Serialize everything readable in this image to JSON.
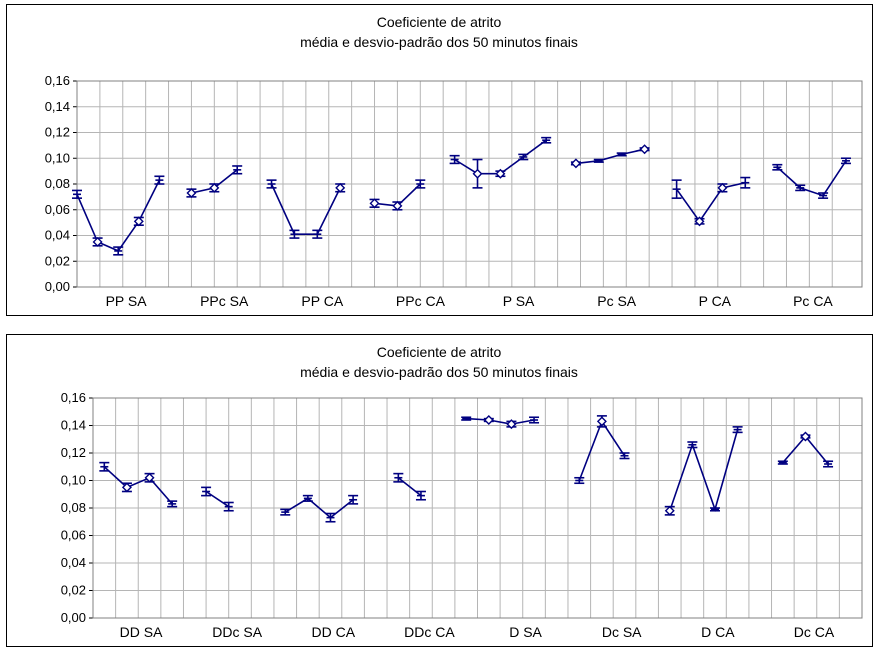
{
  "chart_data": [
    {
      "type": "line",
      "title": "Coeficiente de atrito",
      "subtitle": "média e desvio-padrão dos 50 minutos finais",
      "ylim": [
        0,
        0.16
      ],
      "yticks": [
        "0,00",
        "0,02",
        "0,04",
        "0,06",
        "0,08",
        "0,10",
        "0,12",
        "0,14",
        "0,16"
      ],
      "categories": [
        "PP SA",
        "PPc SA",
        "PP CA",
        "PPc CA",
        "P SA",
        "Pc SA",
        "P CA",
        "Pc CA"
      ],
      "grid": true,
      "color": "#000080",
      "groups": [
        {
          "points": [
            {
              "x": 0,
              "y": 0.072,
              "e": 0.003,
              "m": "plus"
            },
            {
              "x": 0.9,
              "y": 0.035,
              "e": 0.003,
              "m": "diamond"
            },
            {
              "x": 1.8,
              "y": 0.028,
              "e": 0.003,
              "m": "plus"
            },
            {
              "x": 2.7,
              "y": 0.051,
              "e": 0.003,
              "m": "diamond"
            },
            {
              "x": 3.6,
              "y": 0.083,
              "e": 0.003,
              "m": "plus"
            }
          ]
        },
        {
          "points": [
            {
              "x": 5,
              "y": 0.073,
              "e": 0.003,
              "m": "diamond"
            },
            {
              "x": 6,
              "y": 0.077,
              "e": 0.003,
              "m": "diamond"
            },
            {
              "x": 7,
              "y": 0.091,
              "e": 0.003,
              "m": "plus"
            }
          ]
        },
        {
          "points": [
            {
              "x": 8.5,
              "y": 0.08,
              "e": 0.003,
              "m": "plus"
            },
            {
              "x": 9.5,
              "y": 0.041,
              "e": 0.003,
              "m": "plus"
            },
            {
              "x": 10.5,
              "y": 0.041,
              "e": 0.003,
              "m": "plus"
            },
            {
              "x": 11.5,
              "y": 0.077,
              "e": 0.003,
              "m": "diamond"
            }
          ]
        },
        {
          "points": [
            {
              "x": 13,
              "y": 0.065,
              "e": 0.003,
              "m": "diamond"
            },
            {
              "x": 14,
              "y": 0.063,
              "e": 0.003,
              "m": "diamond"
            },
            {
              "x": 15,
              "y": 0.08,
              "e": 0.003,
              "m": "plus"
            }
          ]
        },
        {
          "points": [
            {
              "x": 16.5,
              "y": 0.099,
              "e": 0.003,
              "m": "plus"
            },
            {
              "x": 17.5,
              "y": 0.088,
              "e": 0.011,
              "m": "diamond"
            },
            {
              "x": 18.5,
              "y": 0.088,
              "e": 0.002,
              "m": "diamond"
            },
            {
              "x": 19.5,
              "y": 0.101,
              "e": 0.002,
              "m": "plus"
            },
            {
              "x": 20.5,
              "y": 0.114,
              "e": 0.002,
              "m": "plus"
            }
          ]
        },
        {
          "points": [
            {
              "x": 21.8,
              "y": 0.096,
              "e": 0.001,
              "m": "diamond"
            },
            {
              "x": 22.8,
              "y": 0.098,
              "e": 0.001,
              "m": "plus"
            },
            {
              "x": 23.8,
              "y": 0.103,
              "e": 0.001,
              "m": "plus"
            },
            {
              "x": 24.8,
              "y": 0.107,
              "e": 0.001,
              "m": "diamond"
            }
          ]
        },
        {
          "points": [
            {
              "x": 26.2,
              "y": 0.076,
              "e": 0.007,
              "m": "plus"
            },
            {
              "x": 27.2,
              "y": 0.051,
              "e": 0.002,
              "m": "diamond"
            },
            {
              "x": 28.2,
              "y": 0.077,
              "e": 0.003,
              "m": "diamond"
            },
            {
              "x": 29.2,
              "y": 0.081,
              "e": 0.004,
              "m": "plus"
            }
          ]
        },
        {
          "points": [
            {
              "x": 30.6,
              "y": 0.093,
              "e": 0.002,
              "m": "plus"
            },
            {
              "x": 31.6,
              "y": 0.077,
              "e": 0.002,
              "m": "plus"
            },
            {
              "x": 32.6,
              "y": 0.071,
              "e": 0.002,
              "m": "plus"
            },
            {
              "x": 33.6,
              "y": 0.098,
              "e": 0.002,
              "m": "plus"
            }
          ]
        }
      ]
    },
    {
      "type": "line",
      "title": "Coeficiente de atrito",
      "subtitle": "média e desvio-padrão dos 50 minutos finais",
      "ylim": [
        0,
        0.16
      ],
      "yticks": [
        "0,00",
        "0,02",
        "0,04",
        "0,06",
        "0,08",
        "0,10",
        "0,12",
        "0,14",
        "0,16"
      ],
      "categories": [
        "DD SA",
        "DDc SA",
        "DD CA",
        "DDc CA",
        "D SA",
        "Dc SA",
        "D CA",
        "Dc CA"
      ],
      "grid": true,
      "color": "#000080",
      "groups": [
        {
          "points": [
            {
              "x": 0.5,
              "y": 0.11,
              "e": 0.003,
              "m": "plus"
            },
            {
              "x": 1.5,
              "y": 0.095,
              "e": 0.003,
              "m": "diamond"
            },
            {
              "x": 2.5,
              "y": 0.102,
              "e": 0.003,
              "m": "diamond"
            },
            {
              "x": 3.5,
              "y": 0.083,
              "e": 0.002,
              "m": "plus"
            }
          ]
        },
        {
          "points": [
            {
              "x": 5,
              "y": 0.092,
              "e": 0.003,
              "m": "plus"
            },
            {
              "x": 6,
              "y": 0.081,
              "e": 0.003,
              "m": "plus"
            }
          ]
        },
        {
          "points": [
            {
              "x": 8.5,
              "y": 0.077,
              "e": 0.002,
              "m": "plus"
            },
            {
              "x": 9.5,
              "y": 0.087,
              "e": 0.002,
              "m": "plus"
            },
            {
              "x": 10.5,
              "y": 0.073,
              "e": 0.003,
              "m": "plus"
            },
            {
              "x": 11.5,
              "y": 0.086,
              "e": 0.003,
              "m": "plus"
            }
          ]
        },
        {
          "points": [
            {
              "x": 13.5,
              "y": 0.102,
              "e": 0.003,
              "m": "plus"
            },
            {
              "x": 14.5,
              "y": 0.089,
              "e": 0.003,
              "m": "plus"
            }
          ]
        },
        {
          "points": [
            {
              "x": 16.5,
              "y": 0.145,
              "e": 0.001,
              "m": "plus"
            },
            {
              "x": 17.5,
              "y": 0.144,
              "e": 0.001,
              "m": "diamond"
            },
            {
              "x": 18.5,
              "y": 0.141,
              "e": 0.002,
              "m": "diamond"
            },
            {
              "x": 19.5,
              "y": 0.144,
              "e": 0.002,
              "m": "plus"
            }
          ]
        },
        {
          "points": [
            {
              "x": 21.5,
              "y": 0.1,
              "e": 0.002,
              "m": "plus"
            },
            {
              "x": 22.5,
              "y": 0.143,
              "e": 0.004,
              "m": "diamond"
            },
            {
              "x": 23.5,
              "y": 0.118,
              "e": 0.002,
              "m": "plus"
            }
          ]
        },
        {
          "points": [
            {
              "x": 25.5,
              "y": 0.078,
              "e": 0.003,
              "m": "diamond"
            },
            {
              "x": 26.5,
              "y": 0.126,
              "e": 0.002,
              "m": "plus"
            },
            {
              "x": 27.5,
              "y": 0.079,
              "e": 0.001,
              "m": "plus"
            },
            {
              "x": 28.5,
              "y": 0.137,
              "e": 0.002,
              "m": "plus"
            }
          ]
        },
        {
          "points": [
            {
              "x": 30.5,
              "y": 0.113,
              "e": 0.001,
              "m": "plus"
            },
            {
              "x": 31.5,
              "y": 0.132,
              "e": 0.001,
              "m": "diamond"
            },
            {
              "x": 32.5,
              "y": 0.112,
              "e": 0.002,
              "m": "plus"
            }
          ]
        }
      ]
    }
  ]
}
